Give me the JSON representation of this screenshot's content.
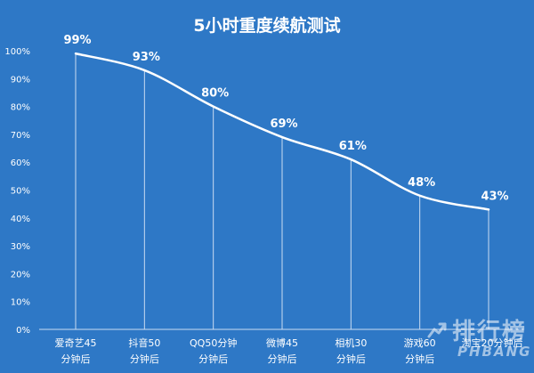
{
  "chart_data": {
    "type": "line",
    "title": "5小时重度续航测试",
    "xlabel": "",
    "ylabel": "",
    "ylim": [
      0,
      100
    ],
    "yticks": [
      "0%",
      "10%",
      "20%",
      "30%",
      "40%",
      "50%",
      "60%",
      "70%",
      "80%",
      "90%",
      "100%"
    ],
    "categories": [
      [
        "爱奇艺45",
        "分钟后"
      ],
      [
        "抖音50",
        "分钟后"
      ],
      [
        "QQ50分钟",
        "分钟后"
      ],
      [
        "微博45",
        "分钟后"
      ],
      [
        "相机30",
        "分钟后"
      ],
      [
        "游戏60",
        "分钟后"
      ],
      [
        "淘宝20分钟后",
        ""
      ]
    ],
    "values": [
      99,
      93,
      80,
      69,
      61,
      48,
      43
    ],
    "value_labels": [
      "99%",
      "93%",
      "80%",
      "69%",
      "61%",
      "48%",
      "43%"
    ],
    "grid": false,
    "colors": {
      "background": "#2e78c6",
      "line": "#ffffff",
      "drop_line": "#c9dcf2",
      "text": "#ffffff"
    }
  },
  "watermark": {
    "text_cn": "排行榜",
    "text_en": "PHBANG",
    "icon": "ranking-logo-icon"
  }
}
